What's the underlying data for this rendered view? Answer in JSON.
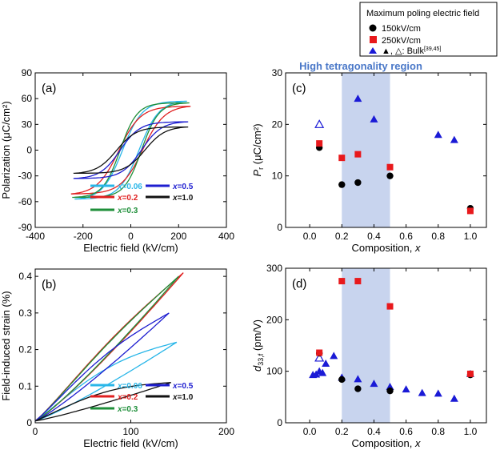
{
  "legend_box": {
    "title": "Maximum poling electric field",
    "entries": [
      {
        "label": "150kV/cm",
        "marker": "circle",
        "color": "#000000"
      },
      {
        "label": "250kV/cm",
        "marker": "square",
        "color": "#e8191c"
      },
      {
        "label": "▲, △: Bulk",
        "ref": "[39,45]",
        "marker": "triangle",
        "color": "#1a1ad6"
      }
    ]
  },
  "region_label": "High tetragonality region",
  "colors": {
    "x006": "#29b6e8",
    "x02": "#e02020",
    "x03": "#1f8f3a",
    "x05": "#1e1ed0",
    "x10": "#111111",
    "band": "#c8d4ee",
    "region_text": "#4a78c8",
    "bulk": "#1a1ad6"
  },
  "comp_legend": [
    {
      "key": "x006",
      "label": "x=0.06"
    },
    {
      "key": "x05",
      "label": "x=0.5"
    },
    {
      "key": "x02",
      "label": "x=0.2"
    },
    {
      "key": "x10",
      "label": "x=1.0"
    },
    {
      "key": "x03",
      "label": "x=0.3"
    }
  ],
  "chart_data": [
    {
      "panel": "(a)",
      "type": "line",
      "xlabel": "Electric field (kV/cm)",
      "ylabel": "Polarization (μC/cm²)",
      "xlim": [
        -400,
        400
      ],
      "ylim": [
        -90,
        90
      ],
      "xticks": [
        -400,
        -200,
        0,
        200,
        400
      ],
      "yticks": [
        -90,
        -60,
        -30,
        0,
        30,
        60,
        90
      ],
      "series": [
        {
          "name": "x=0.06",
          "key": "x006",
          "Emax": 235,
          "Pmax": 57,
          "Pr": 12,
          "Ec": 35,
          "k": 0.012
        },
        {
          "name": "x=0.2",
          "key": "x02",
          "Emax": 250,
          "Pmax": 51,
          "Pr": 15,
          "Ec": 50,
          "k": 0.011
        },
        {
          "name": "x=0.3",
          "key": "x03",
          "Emax": 245,
          "Pmax": 55,
          "Pr": 9,
          "Ec": 45,
          "k": 0.014
        },
        {
          "name": "x=0.5",
          "key": "x05",
          "Emax": 240,
          "Pmax": 33,
          "Pr": 10,
          "Ec": 45,
          "k": 0.012
        },
        {
          "name": "x=1.0",
          "key": "x10",
          "Emax": 240,
          "Pmax": 27,
          "Pr": 4,
          "Ec": 60,
          "k": 0.012
        }
      ]
    },
    {
      "panel": "(b)",
      "type": "line",
      "xlabel": "Electric field (kV/cm)",
      "ylabel": "Field-induced strain (%)",
      "xlim": [
        0,
        200
      ],
      "ylim": [
        0,
        0.42
      ],
      "xticks": [
        0,
        100,
        200
      ],
      "yticks": [
        0,
        0.1,
        0.2,
        0.3,
        0.4
      ],
      "series": [
        {
          "name": "x=0.06",
          "key": "x006",
          "Emax": 148,
          "Smax": 0.22,
          "Sr": 0.005,
          "h": 0.045
        },
        {
          "name": "x=0.2",
          "key": "x02",
          "Emax": 155,
          "Smax": 0.41,
          "Sr": 0.005,
          "h": 0.035
        },
        {
          "name": "x=0.3",
          "key": "x03",
          "Emax": 150,
          "Smax": 0.4,
          "Sr": 0.005,
          "h": 0.03
        },
        {
          "name": "x=0.5",
          "key": "x05",
          "Emax": 140,
          "Smax": 0.3,
          "Sr": 0.005,
          "h": 0.04
        },
        {
          "name": "x=1.0",
          "key": "x10",
          "Emax": 142,
          "Smax": 0.11,
          "Sr": 0.005,
          "h": 0.03
        }
      ]
    },
    {
      "panel": "(c)",
      "type": "scatter",
      "xlabel": "Composition, x",
      "ylabel": "Pᵣ (μC/cm²)",
      "xlim": [
        -0.15,
        1.1
      ],
      "ylim": [
        0,
        30
      ],
      "xticks": [
        0.0,
        0.2,
        0.4,
        0.6,
        0.8,
        1.0
      ],
      "xticklabels": [
        "0.0",
        "0.2",
        "0.4",
        "0.6",
        "0.8",
        "1.0"
      ],
      "yticks": [
        0,
        10,
        20,
        30
      ],
      "band": [
        0.2,
        0.5
      ],
      "series": [
        {
          "name": "150kV/cm",
          "marker": "circle",
          "color": "#000000",
          "x": [
            0.06,
            0.2,
            0.3,
            0.5,
            1.0
          ],
          "y": [
            15.5,
            8.3,
            8.7,
            10.0,
            3.7
          ]
        },
        {
          "name": "250kV/cm",
          "marker": "square",
          "color": "#e8191c",
          "x": [
            0.06,
            0.2,
            0.3,
            0.5,
            1.0
          ],
          "y": [
            16.3,
            13.5,
            14.2,
            11.7,
            3.2
          ]
        },
        {
          "name": "Bulk (open)",
          "marker": "triangle-open",
          "color": "#1a1ad6",
          "x": [
            0.06
          ],
          "y": [
            20.0
          ]
        },
        {
          "name": "Bulk",
          "marker": "triangle",
          "color": "#1a1ad6",
          "x": [
            0.3,
            0.4,
            0.8,
            0.9
          ],
          "y": [
            25.0,
            21.0,
            18.0,
            17.0
          ]
        }
      ]
    },
    {
      "panel": "(d)",
      "type": "scatter",
      "xlabel": "Composition, x",
      "ylabel": "d33,f (pm/V)",
      "xlim": [
        -0.15,
        1.1
      ],
      "ylim": [
        0,
        300
      ],
      "xticks": [
        0.0,
        0.2,
        0.4,
        0.6,
        0.8,
        1.0
      ],
      "xticklabels": [
        "0.0",
        "0.2",
        "0.4",
        "0.6",
        "0.8",
        "1.0"
      ],
      "yticks": [
        0,
        100,
        200,
        300
      ],
      "band": [
        0.2,
        0.5
      ],
      "series": [
        {
          "name": "Bulk",
          "marker": "triangle",
          "color": "#1a1ad6",
          "x": [
            0.02,
            0.04,
            0.06,
            0.08,
            0.1,
            0.15,
            0.2,
            0.3,
            0.4,
            0.5,
            0.6,
            0.7,
            0.8,
            0.9,
            1.0
          ],
          "y": [
            93,
            94,
            100,
            97,
            115,
            130,
            88,
            85,
            76,
            70,
            65,
            58,
            57,
            47,
            95
          ]
        },
        {
          "name": "Bulk (open)",
          "marker": "triangle-open",
          "color": "#1a1ad6",
          "x": [
            0.06
          ],
          "y": [
            126
          ]
        },
        {
          "name": "150kV/cm",
          "marker": "circle",
          "color": "#000000",
          "x": [
            0.06,
            0.2,
            0.3,
            0.5,
            1.0
          ],
          "y": [
            135,
            84,
            66,
            62,
            93
          ]
        },
        {
          "name": "250kV/cm",
          "marker": "square",
          "color": "#e8191c",
          "x": [
            0.06,
            0.2,
            0.3,
            0.5,
            1.0
          ],
          "y": [
            136,
            275,
            275,
            226,
            95
          ]
        }
      ]
    }
  ]
}
